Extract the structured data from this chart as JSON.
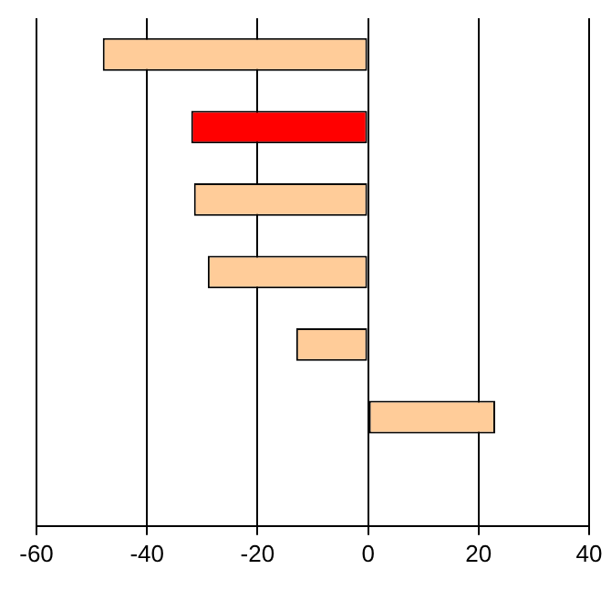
{
  "chart_data": {
    "type": "bar",
    "orientation": "horizontal",
    "categories": [
      null,
      null,
      null,
      null,
      null,
      null,
      null
    ],
    "values": [
      -48,
      -32,
      -31.5,
      -29,
      -13,
      23,
      null
    ],
    "colors": [
      "#ffcc99",
      "#ff0000",
      "#ffcc99",
      "#ffcc99",
      "#ffcc99",
      "#ffcc99",
      "#ffcc99"
    ],
    "xlim": [
      -60,
      40
    ],
    "xticks": [
      -60,
      -40,
      -20,
      0,
      20,
      40
    ],
    "grid": "x",
    "tick_labels": "x",
    "legend": false
  }
}
